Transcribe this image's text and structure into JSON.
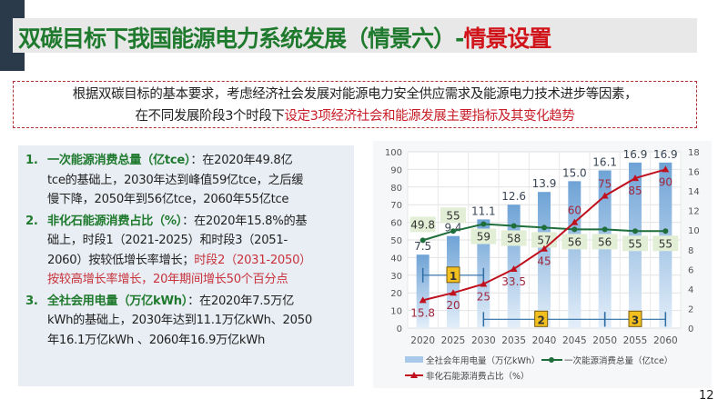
{
  "title": {
    "main": "双碳目标下我国能源电力系统发展（情景六）-",
    "highlight": "情景设置"
  },
  "intro": {
    "line1": "根据双碳目标的基本要求，考虑经济社会发展对能源电力安全供应需求及能源电力技术进步等因素，",
    "line2_plain": "在不同发展阶段3个时段下",
    "line2_red": "设定3项经济社会和能源发展主要指标及其变化趋势"
  },
  "items": [
    {
      "num": "1.",
      "head": "一次能源消费总量（亿tce）",
      "l1": "：在2020年49.8亿",
      "l2": "tce的基础上，2030年达到峰值59亿tce，之后缓",
      "l3": "慢下降，2050年到56亿tce，2060年55亿tce"
    },
    {
      "num": "2.",
      "head": "非化石能源消费占比（%）",
      "l1": "：在2020年15.8%的基",
      "l2": "础上，时段1（2021-2025）和时段3（2051-",
      "l3a": "2060）按较低增长率增长；",
      "l3b": "时段2（2031-2050）",
      "l4": "按较高增长率增长，20年期间增长50个百分点"
    },
    {
      "num": "3.",
      "head": "全社会用电量（万亿kWh）",
      "l1": "：在2020年7.5万亿",
      "l2": "kWh的基础上，2030年达到11.1万亿kWh、2050",
      "l3": "年16.1万亿kWh 、2060年16.9万亿kWh"
    }
  ],
  "page_number": "12",
  "chart_data": {
    "type": "bar+line",
    "categories": [
      "2020",
      "2025",
      "2030",
      "2035",
      "2040",
      "2045",
      "2050",
      "2055",
      "2060"
    ],
    "left_axis": {
      "ticks": [
        "0",
        "10",
        "20",
        "30",
        "40",
        "50",
        "60",
        "70",
        "80",
        "90",
        "100"
      ],
      "range": [
        0,
        100
      ]
    },
    "right_axis": {
      "ticks": [
        "0",
        "2",
        "4",
        "6",
        "8",
        "10",
        "12",
        "14",
        "16",
        "18"
      ],
      "range": [
        0,
        18
      ]
    },
    "series": [
      {
        "name": "全社会年用电量（万亿kWh）",
        "type": "bar",
        "axis": "right",
        "values": [
          7.5,
          9.4,
          11.1,
          12.6,
          13.9,
          15.0,
          16.1,
          16.9,
          16.9
        ],
        "labels": [
          "7.5",
          "9.4",
          "11.1",
          "12.6",
          "13.9",
          "15.0",
          "16.1",
          "16.9",
          "16.9"
        ],
        "color": "#7fb0de"
      },
      {
        "name": "一次能源消费总量（亿tce）",
        "type": "line",
        "axis": "left",
        "values": [
          49.8,
          55,
          59,
          58,
          57,
          56,
          56,
          55,
          55
        ],
        "labels": [
          "49.8",
          "55",
          "59",
          "58",
          "57",
          "56",
          "56",
          "55",
          "55"
        ],
        "color": "#1e6e3c"
      },
      {
        "name": "非化石能源消费占比（%）",
        "type": "line",
        "axis": "left",
        "values": [
          15.8,
          20,
          25,
          33.5,
          45,
          60,
          75,
          85,
          90
        ],
        "labels": [
          "15.8",
          "20",
          "25",
          "33.5",
          "45",
          "60",
          "75",
          "85",
          "90"
        ],
        "color": "#c0101e"
      }
    ],
    "periods": [
      {
        "label": "1",
        "from": "2020",
        "to": "2030"
      },
      {
        "label": "2",
        "from": "2030",
        "to": "2050"
      },
      {
        "label": "3",
        "from": "2050",
        "to": "2060"
      }
    ],
    "grid": true,
    "legend": "bottom"
  }
}
